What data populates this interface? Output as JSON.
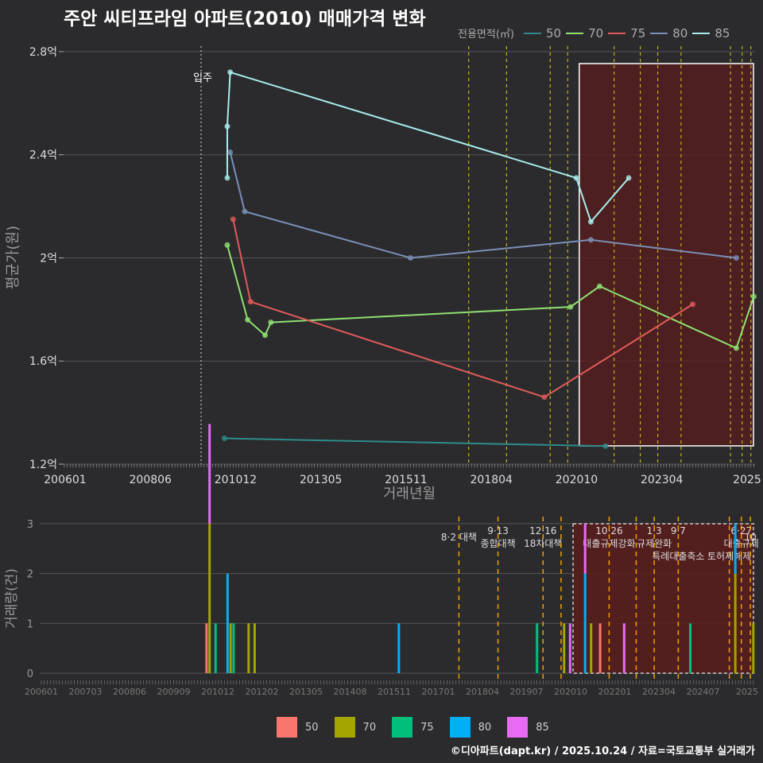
{
  "title": "주안 씨티프라임 아파트(2010) 매매가격 변화",
  "credit": "©디아파트(dapt.kr) / 2025.10.24 / 자료=국토교통부 실거래가",
  "chart_data": [
    {
      "type": "line",
      "title": "주안 씨티프라임 아파트(2010) 매매가격 변화",
      "xlabel": "거래년월",
      "ylabel": "평균가(원)",
      "ylim": [
        1.2,
        2.8
      ],
      "yticks": [
        {
          "v": 1.2,
          "label": "1.2억"
        },
        {
          "v": 1.6,
          "label": "1.6억"
        },
        {
          "v": 2.0,
          "label": "2억"
        },
        {
          "v": 2.4,
          "label": "2.4억"
        },
        {
          "v": 2.8,
          "label": "2.8억"
        }
      ],
      "xticks": [
        "200601",
        "200806",
        "201012",
        "201305",
        "201511",
        "201804",
        "202010",
        "202304",
        "2025"
      ],
      "legend_title": "전용면적(㎡)",
      "legend_position": "top-right",
      "move_in": {
        "month": "2009-12",
        "label": "입주"
      },
      "series": [
        {
          "name": "50",
          "color": "#2e8b8b",
          "points": [
            [
              "2010-08",
              1.3
            ],
            [
              "2021-07",
              1.27
            ]
          ]
        },
        {
          "name": "70",
          "color": "#8fe070",
          "points": [
            [
              "2010-09",
              2.05
            ],
            [
              "2011-04",
              1.76
            ],
            [
              "2011-10",
              1.7
            ],
            [
              "2011-12",
              1.75
            ],
            [
              "2020-07",
              1.81
            ],
            [
              "2021-05",
              1.89
            ],
            [
              "2025-04",
              1.65
            ],
            [
              "2025-10",
              1.85
            ]
          ]
        },
        {
          "name": "75",
          "color": "#e05a5a",
          "points": [
            [
              "2010-11",
              2.15
            ],
            [
              "2011-05",
              1.83
            ],
            [
              "2019-10",
              1.46
            ],
            [
              "2024-01",
              1.82
            ]
          ]
        },
        {
          "name": "80",
          "color": "#7a90b8",
          "points": [
            [
              "2010-10",
              2.41
            ],
            [
              "2011-03",
              2.18
            ],
            [
              "2015-12",
              2.0
            ],
            [
              "2021-02",
              2.07
            ],
            [
              "2025-04",
              2.0
            ]
          ]
        },
        {
          "name": "85",
          "color": "#a8ecec",
          "points": [
            [
              "2010-09",
              2.31
            ],
            [
              "2010-09",
              2.51
            ],
            [
              "2010-10",
              2.72
            ],
            [
              "2020-09",
              2.31
            ],
            [
              "2021-02",
              2.14
            ],
            [
              "2022-03",
              2.31
            ]
          ]
        }
      ]
    },
    {
      "type": "bar",
      "ylabel": "거래량(건)",
      "ylim": [
        0,
        3
      ],
      "yticks": [
        "0",
        "1",
        "2",
        "3"
      ],
      "xticks": [
        "200601",
        "200703",
        "200806",
        "200909",
        "201012",
        "201202",
        "201305",
        "201408",
        "201511",
        "201701",
        "201804",
        "201907",
        "202010",
        "202201",
        "202304",
        "202407",
        "2025"
      ],
      "legend": [
        {
          "name": "50",
          "color": "#f8766d"
        },
        {
          "name": "70",
          "color": "#a3a500"
        },
        {
          "name": "75",
          "color": "#00bf7d"
        },
        {
          "name": "80",
          "color": "#00b0f6"
        },
        {
          "name": "85",
          "color": "#e76bf3"
        }
      ],
      "bars": [
        {
          "month": "2010-08",
          "series": "50",
          "count": 1
        },
        {
          "month": "2010-09",
          "series": "70",
          "count": 3
        },
        {
          "month": "2010-09",
          "series": "85",
          "count": 2
        },
        {
          "month": "2010-11",
          "series": "75",
          "count": 1
        },
        {
          "month": "2011-03",
          "series": "80",
          "count": 2
        },
        {
          "month": "2011-04",
          "series": "70",
          "count": 1
        },
        {
          "month": "2011-05",
          "series": "75",
          "count": 1
        },
        {
          "month": "2011-10",
          "series": "70",
          "count": 1
        },
        {
          "month": "2011-12",
          "series": "70",
          "count": 1
        },
        {
          "month": "2015-12",
          "series": "80",
          "count": 1
        },
        {
          "month": "2019-10",
          "series": "75",
          "count": 1
        },
        {
          "month": "2020-07",
          "series": "70",
          "count": 1
        },
        {
          "month": "2020-09",
          "series": "85",
          "count": 1
        },
        {
          "month": "2021-02",
          "series": "80",
          "count": 2
        },
        {
          "month": "2021-02",
          "series": "85",
          "count": 1
        },
        {
          "month": "2021-04",
          "series": "70",
          "count": 1
        },
        {
          "month": "2021-07",
          "series": "50",
          "count": 1
        },
        {
          "month": "2022-03",
          "series": "85",
          "count": 1
        },
        {
          "month": "2024-01",
          "series": "75",
          "count": 1
        },
        {
          "month": "2025-04",
          "series": "70",
          "count": 2
        },
        {
          "month": "2025-04",
          "series": "80",
          "count": 1
        },
        {
          "month": "2025-10",
          "series": "70",
          "count": 1
        }
      ]
    }
  ],
  "policies": [
    {
      "month": "2017-08",
      "lines": [
        "8·2 대책"
      ]
    },
    {
      "month": "2018-09",
      "lines": [
        "9·13",
        "종합대책"
      ]
    },
    {
      "month": "2019-12",
      "lines": [
        "12·16",
        "18차대책"
      ]
    },
    {
      "month": "2020-06",
      "lines": []
    },
    {
      "month": "2021-10",
      "lines": [
        "10·26",
        "대출규제강화"
      ]
    },
    {
      "month": "2022-07",
      "lines": []
    },
    {
      "month": "2023-01",
      "lines": [
        "1·3",
        "규제완화"
      ]
    },
    {
      "month": "2023-09",
      "lines": [
        "9·7",
        "특례대출축소"
      ]
    },
    {
      "month": "2025-02",
      "lines": [
        "",
        "토허제해제"
      ]
    },
    {
      "month": "2025-06",
      "lines": [
        "6·27",
        "대출규제"
      ]
    },
    {
      "month": "2025-09",
      "lines": [
        "10"
      ]
    }
  ],
  "highlight_start": "2020-10"
}
